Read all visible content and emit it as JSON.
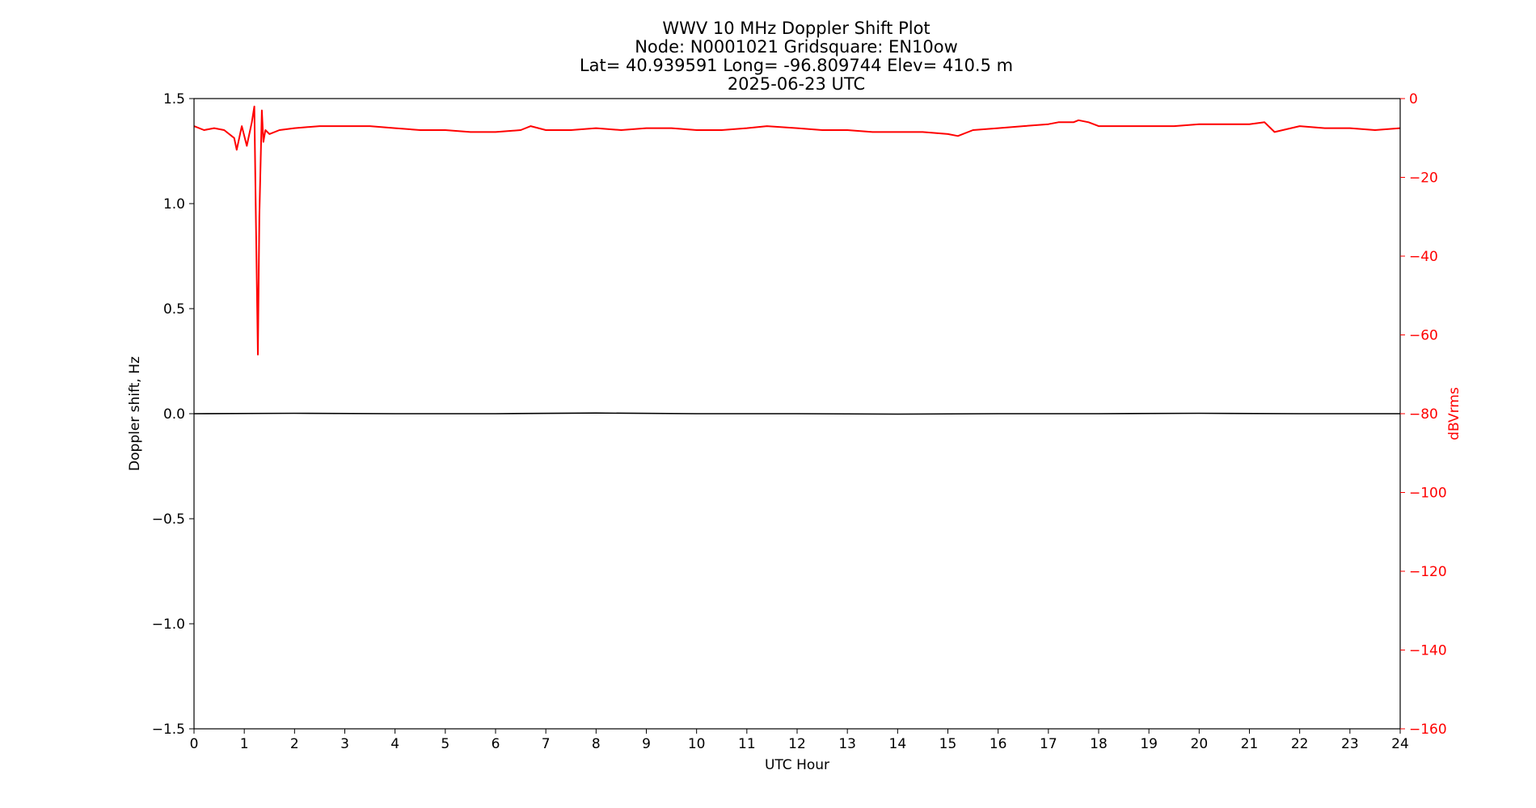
{
  "chart_data": {
    "type": "line",
    "title_lines": [
      "WWV 10 MHz Doppler Shift Plot",
      "Node:  N0001021     Gridsquare:  EN10ow",
      "Lat= 40.939591    Long= -96.809744    Elev= 410.5 m",
      "2025-06-23  UTC"
    ],
    "xlabel": "UTC Hour",
    "ylabel": "Doppler shift, Hz",
    "y2label": "dBVrms",
    "xlim": [
      0,
      24
    ],
    "ylim": [
      -1.5,
      1.5
    ],
    "y2lim": [
      -160,
      0
    ],
    "x_ticks": [
      0,
      1,
      2,
      3,
      4,
      5,
      6,
      7,
      8,
      9,
      10,
      11,
      12,
      13,
      14,
      15,
      16,
      17,
      18,
      19,
      20,
      21,
      22,
      23,
      24
    ],
    "x_tick_labels": [
      "0",
      "1",
      "2",
      "3",
      "4",
      "5",
      "6",
      "7",
      "8",
      "9",
      "10",
      "11",
      "12",
      "13",
      "14",
      "15",
      "16",
      "17",
      "18",
      "19",
      "20",
      "21",
      "22",
      "23",
      "24"
    ],
    "y_ticks": [
      1.5,
      1.0,
      0.5,
      0.0,
      -0.5,
      -1.0,
      -1.5
    ],
    "y_tick_labels": [
      "1.5",
      "1.0",
      "0.5",
      "0.0",
      "−0.5",
      "−1.0",
      "−1.5"
    ],
    "y2_ticks": [
      0,
      -20,
      -40,
      -60,
      -80,
      -100,
      -120,
      -140,
      -160
    ],
    "y2_tick_labels": [
      "0",
      "−20",
      "−40",
      "−60",
      "−80",
      "−100",
      "−120",
      "−140",
      "−160"
    ],
    "grid": false,
    "colors": {
      "doppler": "#000000",
      "power": "#ff0000",
      "y2_axis": "#ff0000"
    },
    "series": [
      {
        "axis": "left",
        "color": "#000000",
        "x": [
          0,
          2,
          4,
          6,
          8,
          10,
          12,
          14,
          16,
          18,
          20,
          22,
          24
        ],
        "y": [
          0.0,
          0.002,
          0.0,
          0.0,
          0.003,
          0.0,
          0.0,
          -0.002,
          0.0,
          0.0,
          0.002,
          0.0,
          0.0
        ]
      },
      {
        "axis": "right",
        "color": "#ff0000",
        "x": [
          0,
          0.2,
          0.4,
          0.6,
          0.8,
          0.85,
          0.95,
          1.05,
          1.15,
          1.2,
          1.23,
          1.27,
          1.3,
          1.35,
          1.38,
          1.42,
          1.5,
          1.7,
          2.0,
          2.5,
          3.0,
          3.5,
          4.0,
          4.5,
          5.0,
          5.5,
          6.0,
          6.5,
          6.7,
          7.0,
          7.5,
          8.0,
          8.5,
          9.0,
          9.5,
          10.0,
          10.5,
          11.0,
          11.4,
          12.0,
          12.5,
          13.0,
          13.5,
          14.0,
          14.5,
          15.0,
          15.2,
          15.5,
          16.0,
          16.5,
          17.0,
          17.2,
          17.5,
          17.6,
          17.8,
          18.0,
          18.5,
          19.0,
          19.5,
          20.0,
          20.5,
          21.0,
          21.3,
          21.5,
          22.0,
          22.5,
          23.0,
          23.5,
          24.0
        ],
        "y": [
          -7,
          -8,
          -7.5,
          -8,
          -10,
          -13,
          -7,
          -12,
          -6,
          -2,
          -30,
          -65,
          -30,
          -3,
          -11,
          -8,
          -9,
          -8,
          -7.5,
          -7,
          -7,
          -7,
          -7.5,
          -8,
          -8,
          -8.5,
          -8.5,
          -8,
          -7,
          -8,
          -8,
          -7.5,
          -8,
          -7.5,
          -7.5,
          -8,
          -8,
          -7.5,
          -7,
          -7.5,
          -8,
          -8,
          -8.5,
          -8.5,
          -8.5,
          -9,
          -9.5,
          -8,
          -7.5,
          -7,
          -6.5,
          -6,
          -6,
          -5.5,
          -6,
          -7,
          -7,
          -7,
          -7,
          -6.5,
          -6.5,
          -6.5,
          -6,
          -8.5,
          -7,
          -7.5,
          -7.5,
          -8,
          -7.5
        ]
      }
    ]
  }
}
